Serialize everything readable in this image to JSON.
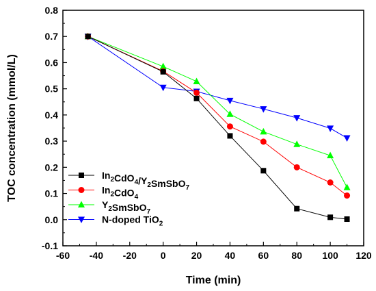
{
  "chart_data": {
    "type": "line",
    "xlabel": "Time (min)",
    "ylabel": "TOC concentration (mmol/L)",
    "xlim": [
      -60,
      120
    ],
    "ylim": [
      -0.1,
      0.8
    ],
    "xticks": [
      -60,
      -40,
      -20,
      0,
      20,
      40,
      60,
      80,
      100,
      120
    ],
    "yticks": [
      -0.1,
      0.0,
      0.1,
      0.2,
      0.3,
      0.4,
      0.5,
      0.6,
      0.7,
      0.8
    ],
    "xtick_labels": [
      "-60",
      "-40",
      "-20",
      "0",
      "20",
      "40",
      "60",
      "80",
      "100",
      "120"
    ],
    "ytick_labels": [
      "-0.1",
      "0.0",
      "0.1",
      "0.2",
      "0.3",
      "0.4",
      "0.5",
      "0.6",
      "0.7",
      "0.8"
    ],
    "grid": false,
    "legend_position": "bottom-left",
    "series": [
      {
        "legend": [
          {
            "t": "In"
          },
          {
            "t": "2",
            "sub": true
          },
          {
            "t": "CdO"
          },
          {
            "t": "4",
            "sub": true
          },
          {
            "t": "/Y"
          },
          {
            "t": "2",
            "sub": true
          },
          {
            "t": "SmSbO"
          },
          {
            "t": "7",
            "sub": true
          }
        ],
        "color": "#000000",
        "marker": "square",
        "x": [
          -45,
          0,
          20,
          40,
          60,
          80,
          100,
          110
        ],
        "y": [
          0.7,
          0.565,
          0.463,
          0.32,
          0.187,
          0.042,
          0.009,
          0.002
        ]
      },
      {
        "legend": [
          {
            "t": "In"
          },
          {
            "t": "2",
            "sub": true
          },
          {
            "t": "CdO"
          },
          {
            "t": "4",
            "sub": true
          }
        ],
        "color": "#ff0000",
        "marker": "circle",
        "x": [
          -45,
          0,
          20,
          40,
          60,
          80,
          100,
          110
        ],
        "y": [
          0.7,
          0.567,
          0.485,
          0.356,
          0.298,
          0.2,
          0.142,
          0.092
        ]
      },
      {
        "legend": [
          {
            "t": "Y"
          },
          {
            "t": "2",
            "sub": true
          },
          {
            "t": "SmSbO"
          },
          {
            "t": "7",
            "sub": true
          }
        ],
        "color": "#00ff00",
        "marker": "triangle-up",
        "x": [
          -45,
          0,
          20,
          40,
          60,
          80,
          100,
          110
        ],
        "y": [
          0.7,
          0.585,
          0.528,
          0.403,
          0.336,
          0.288,
          0.245,
          0.123
        ]
      },
      {
        "legend": [
          {
            "t": "N-doped TiO"
          },
          {
            "t": "2",
            "sub": true
          }
        ],
        "color": "#0000ff",
        "marker": "triangle-down",
        "x": [
          -45,
          0,
          20,
          40,
          60,
          80,
          100,
          110
        ],
        "y": [
          0.7,
          0.505,
          0.49,
          0.455,
          0.423,
          0.389,
          0.349,
          0.312
        ]
      }
    ]
  }
}
